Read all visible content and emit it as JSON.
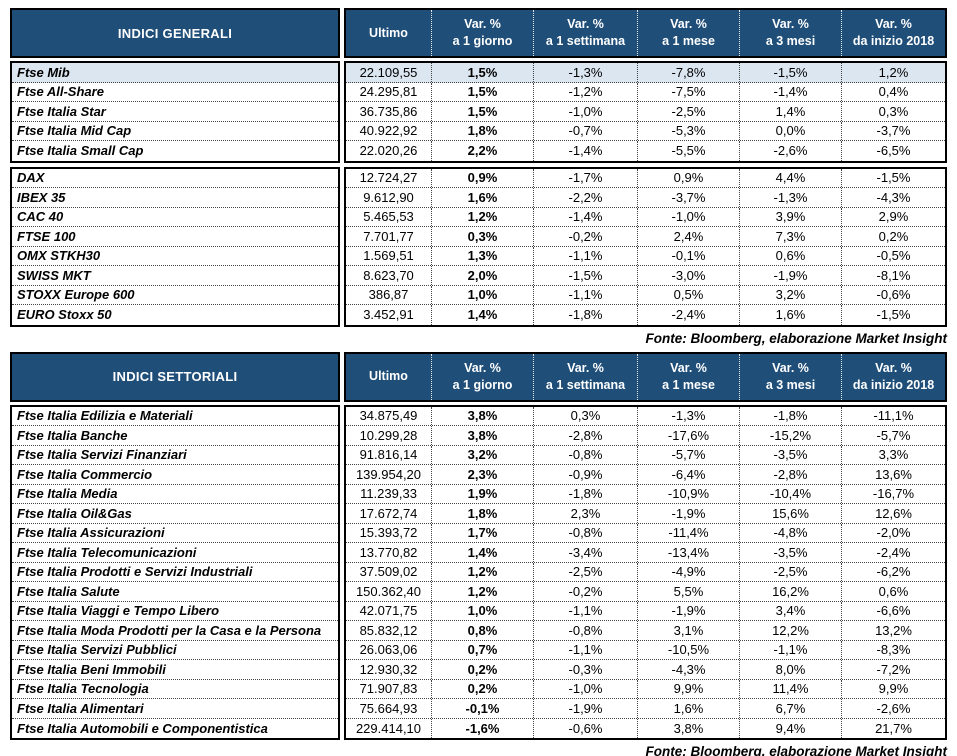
{
  "colors": {
    "header_bg": "#1F4E79",
    "highlight_row": "#DCE6F1",
    "border": "#000000"
  },
  "tables": [
    {
      "title": "INDICI GENERALI",
      "source_note": "Fonte: Bloomberg, elaborazione Market Insight",
      "value_columns": [
        {
          "line1": "Ultimo",
          "line2": ""
        },
        {
          "line1": "Var. %",
          "line2": "a 1 giorno"
        },
        {
          "line1": "Var. %",
          "line2": "a 1 settimana"
        },
        {
          "line1": "Var. %",
          "line2": "a 1 mese"
        },
        {
          "line1": "Var. %",
          "line2": "a 3 mesi"
        },
        {
          "line1": "Var. %",
          "line2": "da inizio 2018"
        }
      ],
      "blocks": [
        [
          {
            "name": "Ftse Mib",
            "highlight": true,
            "values": [
              "22.109,55",
              "1,5%",
              "-1,3%",
              "-7,8%",
              "-1,5%",
              "1,2%"
            ]
          },
          {
            "name": "Ftse All-Share",
            "highlight": false,
            "values": [
              "24.295,81",
              "1,5%",
              "-1,2%",
              "-7,5%",
              "-1,4%",
              "0,4%"
            ]
          },
          {
            "name": "Ftse Italia Star",
            "highlight": false,
            "values": [
              "36.735,86",
              "1,5%",
              "-1,0%",
              "-2,5%",
              "1,4%",
              "0,3%"
            ]
          },
          {
            "name": "Ftse Italia Mid Cap",
            "highlight": false,
            "values": [
              "40.922,92",
              "1,8%",
              "-0,7%",
              "-5,3%",
              "0,0%",
              "-3,7%"
            ]
          },
          {
            "name": "Ftse Italia Small Cap",
            "highlight": false,
            "values": [
              "22.020,26",
              "2,2%",
              "-1,4%",
              "-5,5%",
              "-2,6%",
              "-6,5%"
            ]
          }
        ],
        [
          {
            "name": "DAX",
            "highlight": false,
            "values": [
              "12.724,27",
              "0,9%",
              "-1,7%",
              "0,9%",
              "4,4%",
              "-1,5%"
            ]
          },
          {
            "name": "IBEX 35",
            "highlight": false,
            "values": [
              "9.612,90",
              "1,6%",
              "-2,2%",
              "-3,7%",
              "-1,3%",
              "-4,3%"
            ]
          },
          {
            "name": "CAC 40",
            "highlight": false,
            "values": [
              "5.465,53",
              "1,2%",
              "-1,4%",
              "-1,0%",
              "3,9%",
              "2,9%"
            ]
          },
          {
            "name": "FTSE 100",
            "highlight": false,
            "values": [
              "7.701,77",
              "0,3%",
              "-0,2%",
              "2,4%",
              "7,3%",
              "0,2%"
            ]
          },
          {
            "name": "OMX STKH30",
            "highlight": false,
            "values": [
              "1.569,51",
              "1,3%",
              "-1,1%",
              "-0,1%",
              "0,6%",
              "-0,5%"
            ]
          },
          {
            "name": "SWISS MKT",
            "highlight": false,
            "values": [
              "8.623,70",
              "2,0%",
              "-1,5%",
              "-3,0%",
              "-1,9%",
              "-8,1%"
            ]
          },
          {
            "name": "STOXX Europe 600",
            "highlight": false,
            "values": [
              "386,87",
              "1,0%",
              "-1,1%",
              "0,5%",
              "3,2%",
              "-0,6%"
            ]
          },
          {
            "name": "EURO Stoxx 50",
            "highlight": false,
            "values": [
              "3.452,91",
              "1,4%",
              "-1,8%",
              "-2,4%",
              "1,6%",
              "-1,5%"
            ]
          }
        ]
      ]
    },
    {
      "title": "INDICI SETTORIALI",
      "source_note": "Fonte: Bloomberg, elaborazione Market Insight",
      "value_columns": [
        {
          "line1": "Ultimo",
          "line2": ""
        },
        {
          "line1": "Var. %",
          "line2": "a 1 giorno"
        },
        {
          "line1": "Var. %",
          "line2": "a 1 settimana"
        },
        {
          "line1": "Var. %",
          "line2": "a 1 mese"
        },
        {
          "line1": "Var. %",
          "line2": "a 3 mesi"
        },
        {
          "line1": "Var. %",
          "line2": "da inizio 2018"
        }
      ],
      "blocks": [
        [
          {
            "name": "Ftse Italia Edilizia e Materiali",
            "highlight": false,
            "values": [
              "34.875,49",
              "3,8%",
              "0,3%",
              "-1,3%",
              "-1,8%",
              "-11,1%"
            ]
          },
          {
            "name": "Ftse Italia Banche",
            "highlight": false,
            "values": [
              "10.299,28",
              "3,8%",
              "-2,8%",
              "-17,6%",
              "-15,2%",
              "-5,7%"
            ]
          },
          {
            "name": "Ftse Italia Servizi Finanziari",
            "highlight": false,
            "values": [
              "91.816,14",
              "3,2%",
              "-0,8%",
              "-5,7%",
              "-3,5%",
              "3,3%"
            ]
          },
          {
            "name": "Ftse Italia Commercio",
            "highlight": false,
            "values": [
              "139.954,20",
              "2,3%",
              "-0,9%",
              "-6,4%",
              "-2,8%",
              "13,6%"
            ]
          },
          {
            "name": "Ftse Italia Media",
            "highlight": false,
            "values": [
              "11.239,33",
              "1,9%",
              "-1,8%",
              "-10,9%",
              "-10,4%",
              "-16,7%"
            ]
          },
          {
            "name": "Ftse Italia Oil&Gas",
            "highlight": false,
            "values": [
              "17.672,74",
              "1,8%",
              "2,3%",
              "-1,9%",
              "15,6%",
              "12,6%"
            ]
          },
          {
            "name": "Ftse Italia Assicurazioni",
            "highlight": false,
            "values": [
              "15.393,72",
              "1,7%",
              "-0,8%",
              "-11,4%",
              "-4,8%",
              "-2,0%"
            ]
          },
          {
            "name": "Ftse Italia Telecomunicazioni",
            "highlight": false,
            "values": [
              "13.770,82",
              "1,4%",
              "-3,4%",
              "-13,4%",
              "-3,5%",
              "-2,4%"
            ]
          },
          {
            "name": "Ftse Italia Prodotti e Servizi Industriali",
            "highlight": false,
            "values": [
              "37.509,02",
              "1,2%",
              "-2,5%",
              "-4,9%",
              "-2,5%",
              "-6,2%"
            ]
          },
          {
            "name": "Ftse Italia Salute",
            "highlight": false,
            "values": [
              "150.362,40",
              "1,2%",
              "-0,2%",
              "5,5%",
              "16,2%",
              "0,6%"
            ]
          },
          {
            "name": "Ftse Italia Viaggi e Tempo Libero",
            "highlight": false,
            "values": [
              "42.071,75",
              "1,0%",
              "-1,1%",
              "-1,9%",
              "3,4%",
              "-6,6%"
            ]
          },
          {
            "name": "Ftse Italia Moda Prodotti per la Casa e la Persona",
            "highlight": false,
            "values": [
              "85.832,12",
              "0,8%",
              "-0,8%",
              "3,1%",
              "12,2%",
              "13,2%"
            ]
          },
          {
            "name": "Ftse Italia Servizi Pubblici",
            "highlight": false,
            "values": [
              "26.063,06",
              "0,7%",
              "-1,1%",
              "-10,5%",
              "-1,1%",
              "-8,3%"
            ]
          },
          {
            "name": "Ftse Italia Beni Immobili",
            "highlight": false,
            "values": [
              "12.930,32",
              "0,2%",
              "-0,3%",
              "-4,3%",
              "8,0%",
              "-7,2%"
            ]
          },
          {
            "name": "Ftse Italia Tecnologia",
            "highlight": false,
            "values": [
              "71.907,83",
              "0,2%",
              "-1,0%",
              "9,9%",
              "11,4%",
              "9,9%"
            ]
          },
          {
            "name": "Ftse Italia Alimentari",
            "highlight": false,
            "values": [
              "75.664,93",
              "-0,1%",
              "-1,9%",
              "1,6%",
              "6,7%",
              "-2,6%"
            ]
          },
          {
            "name": "Ftse Italia Automobili e Componentistica",
            "highlight": false,
            "values": [
              "229.414,10",
              "-1,6%",
              "-0,6%",
              "3,8%",
              "9,4%",
              "21,7%"
            ]
          }
        ]
      ]
    }
  ]
}
